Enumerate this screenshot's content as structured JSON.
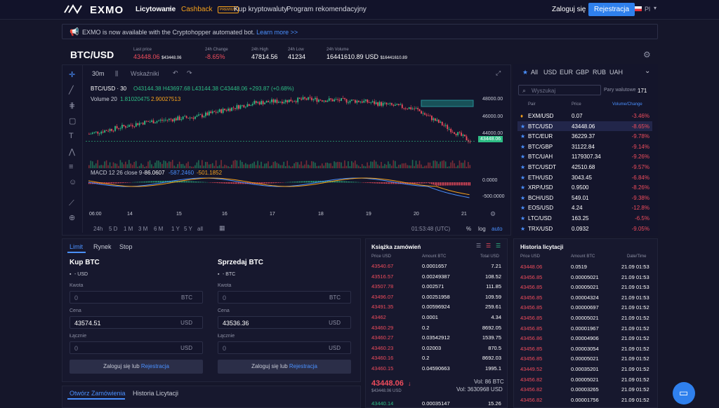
{
  "nav": {
    "logo": "EXMO",
    "items": [
      "Licytowanie",
      "Cashback",
      "Kup kryptowaluty",
      "Program rekomendacyjny"
    ],
    "premium": "PREMIUM",
    "login": "Zaloguj się",
    "register": "Rejestracja",
    "lang": "Pl"
  },
  "banner": {
    "text": "EXMO is now available with the Cryptohopper automated bot.",
    "link": "Learn more >>"
  },
  "pair": "BTC/USD",
  "stats": [
    {
      "label": "Last price",
      "value": "43448.06",
      "sub": "$43448.06"
    },
    {
      "label": "24h Change",
      "value": "-8.65%"
    },
    {
      "label": "24h High",
      "value": "47814.56"
    },
    {
      "label": "24h Low",
      "value": "41234"
    },
    {
      "label": "24h Volume",
      "value": "16441610.89 USD",
      "sub": "$16441610.89"
    }
  ],
  "chart": {
    "interval": "30m",
    "indicators": "Wskaźniki",
    "legend": "BTC/USD · 30",
    "ohlc": "O43144.38 H43697.68 L43144.38 C43448.06 +293.87 (+0.68%)",
    "volume": "Volume 20",
    "vol1": "1.81020475",
    "vol2": "2.90027513",
    "macd": "MACD 12 26 close 9",
    "macd1": "-86.0607",
    "macd2": "-587.2460",
    "macd3": "-501.1852",
    "yticks": [
      "48000.00",
      "46000.00",
      "44000.00",
      "43448.06",
      "0.0000",
      "-500.0000"
    ],
    "xticks": [
      "06:00",
      "14",
      "15",
      "16",
      "17",
      "18",
      "19",
      "20",
      "21"
    ],
    "ranges": [
      "24h",
      "5 D",
      "1 M",
      "3 M",
      "6 M",
      "1 Y",
      "5 Y",
      "all"
    ],
    "time": "01:53:48 (UTC)",
    "pct": "%",
    "log": "log",
    "auto": "auto"
  },
  "chart_data": {
    "type": "line",
    "title": "BTC/USD · 30",
    "x": [
      "14",
      "15",
      "16",
      "17",
      "18",
      "19",
      "20",
      "21"
    ],
    "series": [
      {
        "name": "BTC/USD",
        "values": [
          44200,
          45400,
          46000,
          47400,
          47800,
          47600,
          46800,
          43448.06
        ]
      }
    ],
    "ylim": [
      41000,
      49000
    ]
  },
  "market": {
    "tabs": [
      "All",
      "USD",
      "EUR",
      "GBP",
      "RUB",
      "UAH"
    ],
    "search": "Wyszukaj",
    "pairs_label": "Pary walutowe",
    "pairs_count": "171",
    "headers": [
      "Pair",
      "Price",
      "Volume/Change"
    ],
    "rows": [
      [
        "EXM/USD",
        "0.07",
        "-3.46%"
      ],
      [
        "BTC/USD",
        "43448.06",
        "-8.65%"
      ],
      [
        "BTC/EUR",
        "36229.37",
        "-9.78%"
      ],
      [
        "BTC/GBP",
        "31122.84",
        "-9.14%"
      ],
      [
        "BTC/UAH",
        "1179307.34",
        "-9.26%"
      ],
      [
        "BTC/USDT",
        "42510.68",
        "-9.57%"
      ],
      [
        "ETH/USD",
        "3043.45",
        "-6.84%"
      ],
      [
        "XRP/USD",
        "0.9500",
        "-8.26%"
      ],
      [
        "BCH/USD",
        "549.01",
        "-9.38%"
      ],
      [
        "EOS/USD",
        "4.24",
        "-12.8%"
      ],
      [
        "LTC/USD",
        "163.25",
        "-6.5%"
      ],
      [
        "TRX/USD",
        "0.0932",
        "-9.05%"
      ]
    ]
  },
  "form": {
    "tabs": [
      "Limit",
      "Rynek",
      "Stop"
    ],
    "buy": {
      "title": "Kup BTC",
      "bal": "- USD",
      "amount_label": "Kwota",
      "amount": "0",
      "amount_unit": "BTC",
      "price_label": "Cena",
      "price": "43574.51",
      "price_unit": "USD",
      "total_label": "Łącznie",
      "total": "0",
      "total_unit": "USD"
    },
    "sell": {
      "title": "Sprzedaj BTC",
      "bal": "- BTC",
      "amount_label": "Kwota",
      "amount": "0",
      "amount_unit": "BTC",
      "price_label": "Cena",
      "price": "43536.36",
      "price_unit": "USD",
      "total_label": "Łącznie",
      "total": "0",
      "total_unit": "USD"
    },
    "login": "Zaloguj się",
    "or": "lub",
    "reg": "Rejestracja"
  },
  "bottomtabs": [
    "Otwórz Zamówienia",
    "Historia Licytacji"
  ],
  "orderbook": {
    "title": "Książka zamówień",
    "headers": [
      "Price USD",
      "Amount BTC",
      "Total USD"
    ],
    "rows": [
      [
        "43540.67",
        "0.0001657",
        "7.21"
      ],
      [
        "43516.57",
        "0.00249387",
        "108.52"
      ],
      [
        "43507.78",
        "0.002571",
        "111.85"
      ],
      [
        "43496.07",
        "0.00251958",
        "109.59"
      ],
      [
        "43491.35",
        "0.00596924",
        "259.61"
      ],
      [
        "43462",
        "0.0001",
        "4.34"
      ],
      [
        "43460.29",
        "0.2",
        "8692.05"
      ],
      [
        "43460.27",
        "0.03542912",
        "1539.75"
      ],
      [
        "43460.23",
        "0.02003",
        "870.5"
      ],
      [
        "43460.16",
        "0.2",
        "8692.03"
      ],
      [
        "43460.15",
        "0.04590663",
        "1995.1"
      ]
    ],
    "last": "43448.06",
    "last_sub": "$43448.06 USD",
    "vol_btc": "Vol: 86 BTC",
    "vol_usd": "Vol: 3630968 USD",
    "bid": [
      "43440.14",
      "0.00035147",
      "15.26"
    ]
  },
  "history": {
    "title": "Historia licytacji",
    "headers": [
      "Price USD",
      "Amount BTC",
      "Date/Time"
    ],
    "rows": [
      [
        "43448.06",
        "0.0519",
        "21.09 01:53"
      ],
      [
        "43456.85",
        "0.00005021",
        "21.09 01:53"
      ],
      [
        "43456.85",
        "0.00005021",
        "21.09 01:53"
      ],
      [
        "43456.85",
        "0.00004324",
        "21.09 01:53"
      ],
      [
        "43456.85",
        "0.00000697",
        "21.09 01:52"
      ],
      [
        "43456.85",
        "0.00005021",
        "21.09 01:52"
      ],
      [
        "43456.85",
        "0.00001967",
        "21.09 01:52"
      ],
      [
        "43456.86",
        "0.00004906",
        "21.09 01:52"
      ],
      [
        "43456.85",
        "0.00003054",
        "21.09 01:52"
      ],
      [
        "43456.85",
        "0.00005021",
        "21.09 01:52"
      ],
      [
        "43449.52",
        "0.00035201",
        "21.09 01:52"
      ],
      [
        "43456.82",
        "0.00005021",
        "21.09 01:52"
      ],
      [
        "43456.82",
        "0.00003265",
        "21.09 01:52"
      ],
      [
        "43456.82",
        "0.00001756",
        "21.09 01:52"
      ]
    ]
  }
}
